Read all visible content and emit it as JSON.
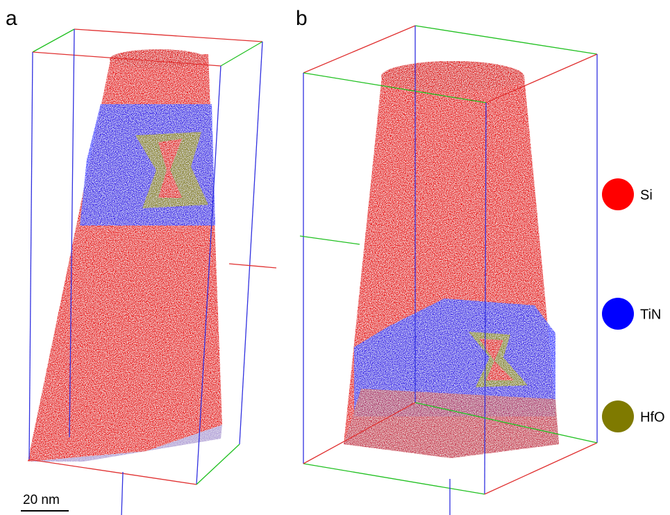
{
  "panels": [
    {
      "label": "a"
    },
    {
      "label": "b"
    }
  ],
  "scale_bar": {
    "label": "20 nm"
  },
  "legend": [
    {
      "label": "Si",
      "color": "#ff0000"
    },
    {
      "label": "TiN",
      "color": "#0000ff"
    },
    {
      "label": "HfO",
      "color": "#7f7a00"
    }
  ]
}
